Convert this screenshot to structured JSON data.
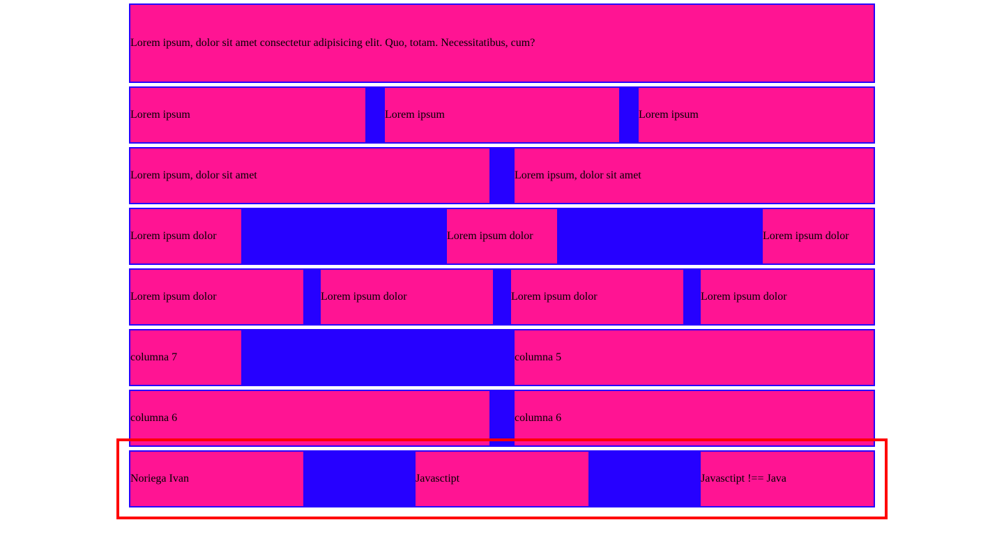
{
  "colors": {
    "cell_background": "#ff1493",
    "row_background": "#2600ff",
    "highlight_border": "#ff0000"
  },
  "rows": [
    {
      "cells": [
        "Lorem ipsum, dolor sit amet consectetur adipisicing elit. Quo, totam. Necessitatibus, cum?"
      ]
    },
    {
      "cells": [
        "Lorem ipsum",
        "Lorem ipsum",
        "Lorem ipsum"
      ]
    },
    {
      "cells": [
        "Lorem ipsum, dolor sit amet",
        "Lorem ipsum, dolor sit amet"
      ]
    },
    {
      "cells": [
        "Lorem ipsum dolor",
        "Lorem ipsum dolor",
        "Lorem ipsum dolor"
      ]
    },
    {
      "cells": [
        "Lorem ipsum dolor",
        "Lorem ipsum dolor",
        "Lorem ipsum dolor",
        "Lorem ipsum dolor"
      ]
    },
    {
      "cells": [
        "columna 7",
        "columna 5"
      ]
    },
    {
      "cells": [
        "columna 6",
        "columna 6"
      ]
    },
    {
      "cells": [
        "Noriega Ivan",
        "Javasctipt",
        "Javasctipt !== Java"
      ]
    }
  ]
}
